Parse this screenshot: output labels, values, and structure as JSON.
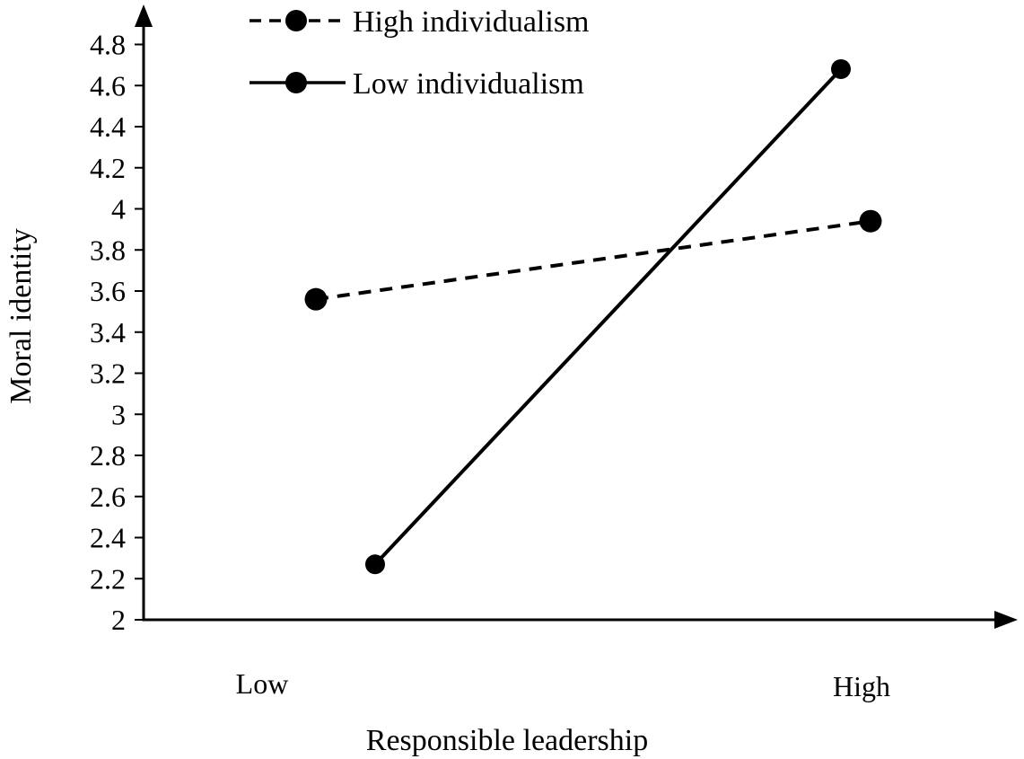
{
  "chart_data": {
    "type": "line",
    "xlabel": "Responsible leadership",
    "ylabel": "Moral identity",
    "x_tick_labels": [
      "Low",
      "High"
    ],
    "ylim": [
      2,
      4.8
    ],
    "y_ticks": [
      "2",
      "2.2",
      "2.4",
      "2.6",
      "2.8",
      "3",
      "3.2",
      "3.4",
      "3.6",
      "3.8",
      "4",
      "4.2",
      "4.4",
      "4.6",
      "4.8"
    ],
    "grid": false,
    "legend_position": "top-left",
    "series": [
      {
        "name": "High individualism",
        "line_style": "dashed",
        "color": "#000000",
        "points": [
          {
            "x": "Low",
            "y": 3.56
          },
          {
            "x": "High",
            "y": 3.94
          }
        ]
      },
      {
        "name": "Low individualism",
        "line_style": "solid",
        "color": "#000000",
        "points": [
          {
            "x": "Low",
            "y": 2.27
          },
          {
            "x": "High",
            "y": 4.68
          }
        ]
      }
    ]
  }
}
